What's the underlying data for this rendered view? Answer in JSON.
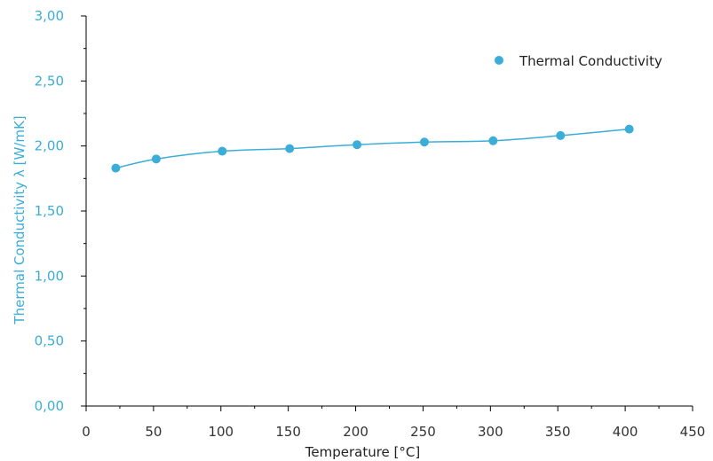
{
  "chart_data": {
    "type": "scatter",
    "xlabel": "Temperature [°C]",
    "ylabel": "Thermal Conductivity λ [W/mK]",
    "xlim": [
      0,
      450
    ],
    "ylim": [
      0,
      3
    ],
    "x_ticks": [
      0,
      50,
      100,
      150,
      200,
      250,
      300,
      350,
      400,
      450
    ],
    "x_tick_labels": [
      "0",
      "50",
      "100",
      "150",
      "200",
      "250",
      "300",
      "350",
      "400",
      "450"
    ],
    "y_ticks": [
      0,
      0.5,
      1,
      1.5,
      2,
      2.5,
      3
    ],
    "y_tick_labels": [
      "0,00",
      "0,50",
      "1,00",
      "1,50",
      "2,00",
      "2,50",
      "3,00"
    ],
    "grid": false,
    "legend_position": "top-right",
    "smoothed_line": true,
    "series": [
      {
        "name": "Thermal Conductivity",
        "color": "#3aaed8",
        "x": [
          22,
          52,
          101,
          151,
          201,
          251,
          302,
          352,
          403
        ],
        "y": [
          1.83,
          1.9,
          1.96,
          1.98,
          2.01,
          2.03,
          2.04,
          2.08,
          2.13
        ]
      }
    ]
  }
}
